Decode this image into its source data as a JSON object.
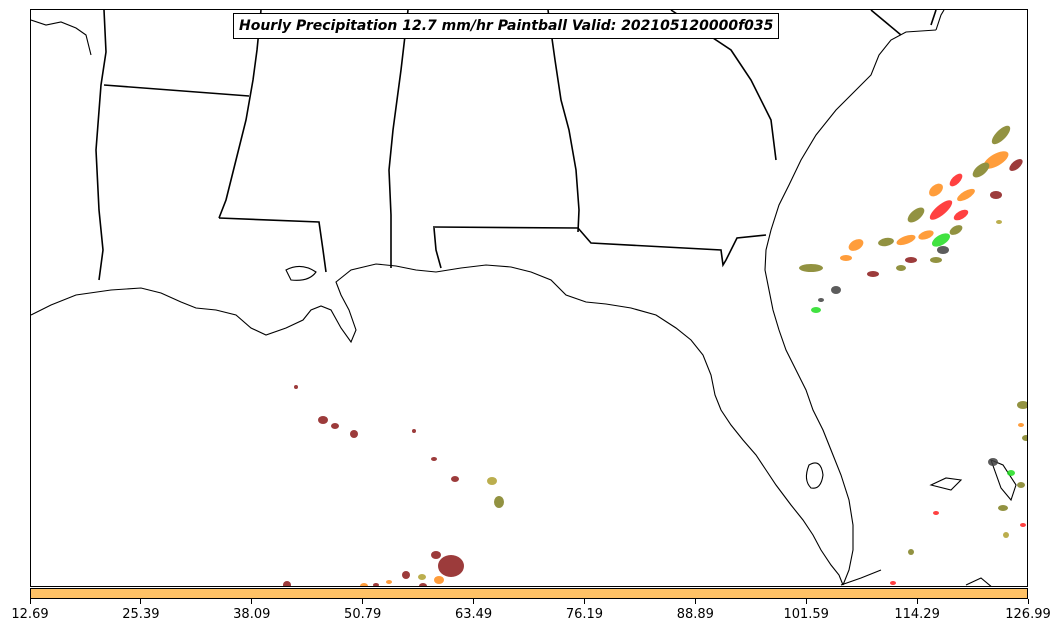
{
  "title": "Hourly Precipitation 12.7 mm/hr Paintball Valid: 202105120000f035",
  "colorbar": {
    "color": "#ffc266",
    "ticks": [
      "12.69",
      "25.39",
      "38.09",
      "50.79",
      "63.49",
      "76.19",
      "88.89",
      "101.59",
      "114.29",
      "126.99"
    ]
  },
  "map": {
    "region": "US Gulf Coast and Southeast",
    "features": [
      "state-borders",
      "coastline",
      "florida-peninsula",
      "precipitation-blobs"
    ],
    "blob_colors": [
      "#8b1a1a",
      "#ff2020",
      "#ff8c1a",
      "#808020",
      "#20dd20",
      "#404040",
      "#b0a030"
    ]
  }
}
